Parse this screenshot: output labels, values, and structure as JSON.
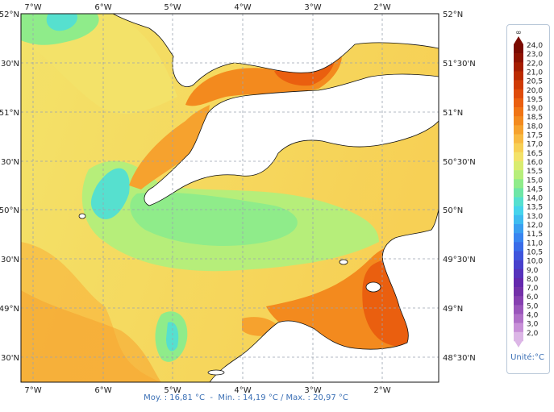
{
  "map": {
    "lon_ticks": [
      "7°W",
      "6°W",
      "5°W",
      "4°W",
      "3°W",
      "2°W"
    ],
    "lat_ticks_left": [
      "52°N",
      "30'N",
      "51°N",
      "30'N",
      "50°N",
      "30'N",
      "49°N",
      "30'N"
    ],
    "lat_ticks_right": [
      "52°N",
      "51°30'N",
      "51°N",
      "50°30'N",
      "50°N",
      "49°30'N",
      "49°N",
      "48°30'N"
    ]
  },
  "stats": {
    "mean_label": "Moy. : 16,81 °C",
    "sep1": "  -  ",
    "min_label": "Min. : 14,19 °C / Max. : 20,97 °C"
  },
  "legend": {
    "top_label": "∞",
    "labels": [
      "24,0",
      "23,0",
      "22,0",
      "21,0",
      "20,5",
      "20,0",
      "19,5",
      "19,0",
      "18,5",
      "18,0",
      "17,5",
      "17,0",
      "16,5",
      "16,0",
      "15,5",
      "15,0",
      "14,5",
      "14,0",
      "13,5",
      "13,0",
      "12,0",
      "11,5",
      "11,0",
      "10,5",
      "10,0",
      "9,0",
      "8,0",
      "7,0",
      "6,0",
      "5,0",
      "4,0",
      "3,0",
      "2,0"
    ],
    "colors": [
      "#7a0a00",
      "#8e1200",
      "#a51d00",
      "#bb2a00",
      "#cf3a05",
      "#df4b0a",
      "#ea5f0f",
      "#f07414",
      "#f38a1e",
      "#f6a22e",
      "#f8ba42",
      "#f7d055",
      "#f3e269",
      "#d9ec6f",
      "#b6ee7a",
      "#8fec8a",
      "#6fe6a6",
      "#56e0cf",
      "#46d4ec",
      "#3ebcf0",
      "#3a9ff0",
      "#3985f0",
      "#3a6ce8",
      "#3f55dc",
      "#4840cc",
      "#5632bb",
      "#6428ad",
      "#7330a8",
      "#8640b0",
      "#9a56bb",
      "#b070c8",
      "#c890d8",
      "#dcb6e6"
    ],
    "unit": "Unité:°C"
  }
}
